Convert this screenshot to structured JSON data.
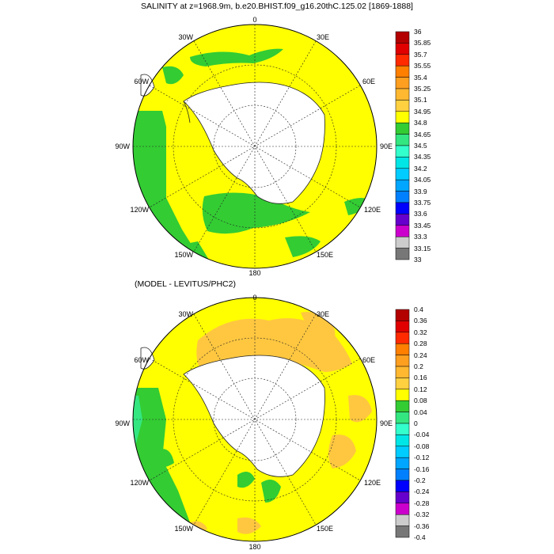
{
  "panels": [
    {
      "title": "SALINITY at z=1968.9m, b.e20.BHIST.f09_g16.20thC.125.02 [1869-1888]",
      "lon_labels": {
        "top": "0",
        "right_upper": "30E",
        "right_mid_upper": "60E",
        "right": "90E",
        "right_mid_lower": "120E",
        "right_lower": "150E",
        "bottom": "180",
        "left_lower": "150W",
        "left_mid_lower": "120W",
        "left": "90W",
        "left_mid_upper": "60W",
        "left_upper": "30W"
      },
      "colorbar_labels": [
        "36",
        "35.85",
        "35.7",
        "35.55",
        "35.4",
        "35.25",
        "35.1",
        "34.95",
        "34.8",
        "34.65",
        "34.5",
        "34.35",
        "34.2",
        "34.05",
        "33.9",
        "33.75",
        "33.6",
        "33.45",
        "33.3",
        "33.15",
        "33"
      ],
      "colorbar_colors": [
        "#b30000",
        "#e00000",
        "#ff2a00",
        "#ff7f00",
        "#ff9f20",
        "#ffb830",
        "#ffd040",
        "#ffff00",
        "#33cc33",
        "#33e680",
        "#33ffcc",
        "#00e6e6",
        "#00ccff",
        "#00a6ff",
        "#0080ff",
        "#0000ff",
        "#6600cc",
        "#cc00cc",
        "#cccccc",
        "#777777"
      ]
    },
    {
      "title": "(MODEL - LEVITUS/PHC2)",
      "lon_labels": {
        "top": "0",
        "right_upper": "30E",
        "right_mid_upper": "60E",
        "right": "90E",
        "right_mid_lower": "120E",
        "right_lower": "150E",
        "bottom": "180",
        "left_lower": "150W",
        "left_mid_lower": "120W",
        "left": "90W",
        "left_mid_upper": "60W",
        "left_upper": "30W"
      },
      "colorbar_labels": [
        "0.4",
        "0.36",
        "0.32",
        "0.28",
        "0.24",
        "0.2",
        "0.16",
        "0.12",
        "0.08",
        "0.04",
        "0",
        "-0.04",
        "-0.08",
        "-0.12",
        "-0.16",
        "-0.2",
        "-0.24",
        "-0.28",
        "-0.32",
        "-0.36",
        "-0.4"
      ],
      "colorbar_colors": [
        "#b30000",
        "#e00000",
        "#ff2a00",
        "#ff7f00",
        "#ff9f20",
        "#ffb830",
        "#ffd040",
        "#ffff00",
        "#33cc33",
        "#33e680",
        "#33ffcc",
        "#00e6e6",
        "#00ccff",
        "#00a6ff",
        "#0080ff",
        "#0000ff",
        "#6600cc",
        "#cc00cc",
        "#cccccc",
        "#777777"
      ]
    }
  ]
}
